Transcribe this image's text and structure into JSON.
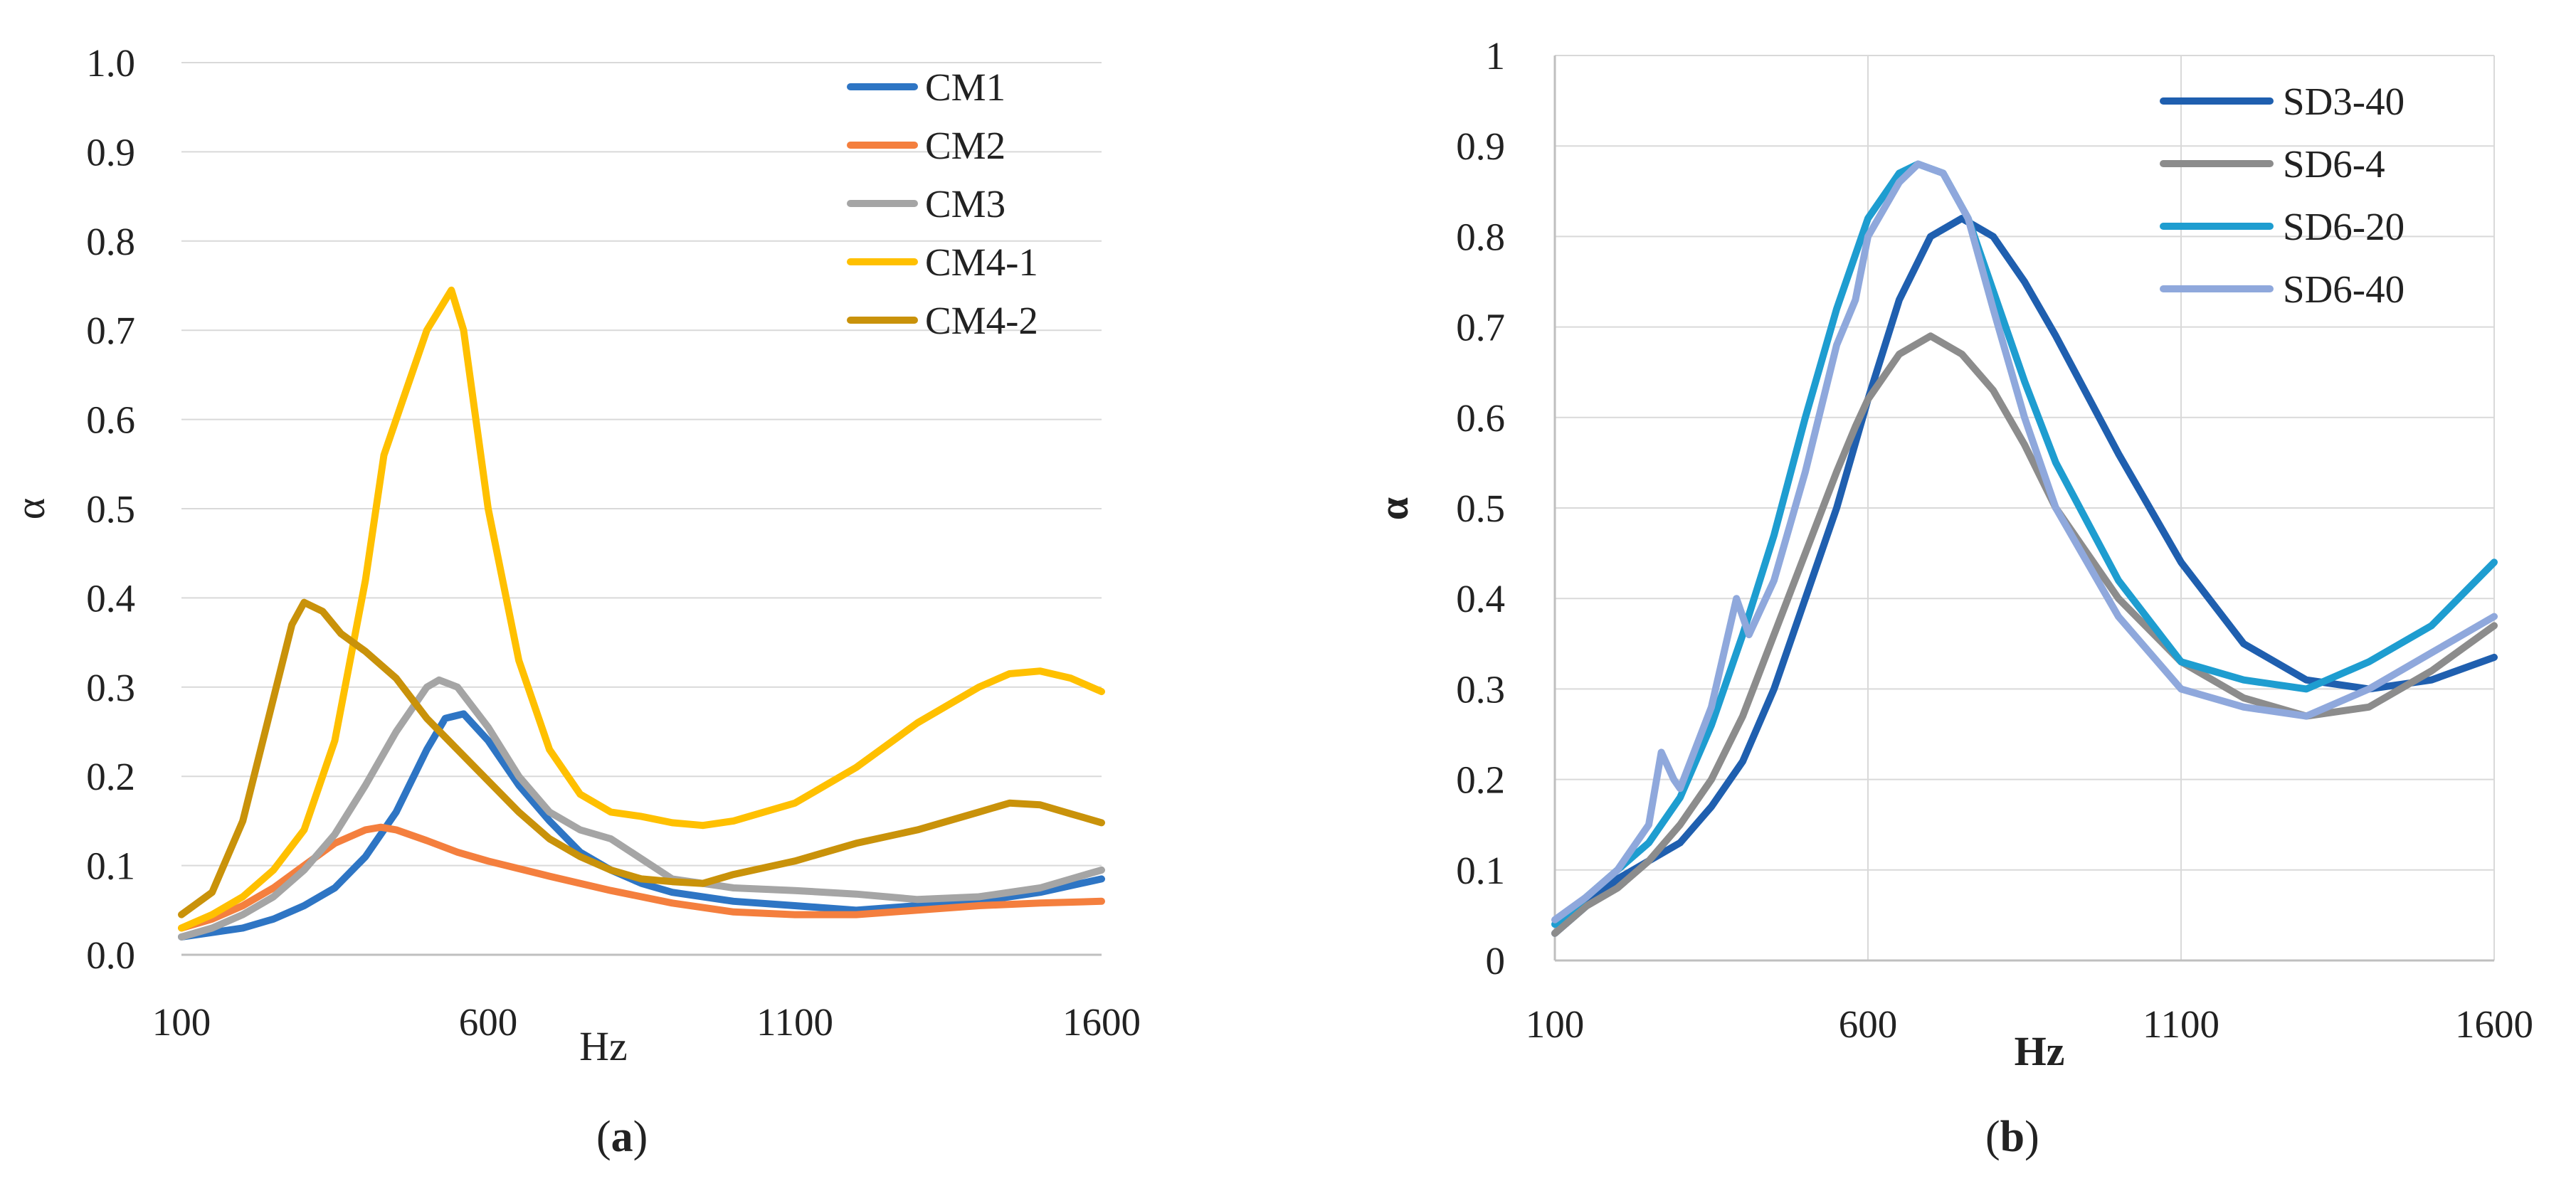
{
  "chart_data": [
    {
      "id": "a",
      "type": "line",
      "caption": "a",
      "xlabel": "Hz",
      "ylabel": "α",
      "xlim": [
        100,
        1600
      ],
      "ylim": [
        0,
        1
      ],
      "xticks": [
        100,
        600,
        1100,
        1600
      ],
      "xtick_labels": [
        "100",
        "600",
        "1100",
        "1600"
      ],
      "yticks": [
        0,
        0.1,
        0.2,
        0.3,
        0.4,
        0.5,
        0.6,
        0.7,
        0.8,
        0.9,
        1.0
      ],
      "ytick_labels": [
        "0.0",
        "0.1",
        "0.2",
        "0.3",
        "0.4",
        "0.5",
        "0.6",
        "0.7",
        "0.8",
        "0.9",
        "1.0"
      ],
      "grid": "horizontal",
      "legend_position": "top-right",
      "series": [
        {
          "name": "CM1",
          "color": "#2E75C4",
          "x": [
            100,
            150,
            200,
            250,
            300,
            350,
            400,
            450,
            500,
            530,
            560,
            600,
            650,
            700,
            750,
            800,
            850,
            900,
            1000,
            1100,
            1200,
            1300,
            1400,
            1500,
            1600
          ],
          "y": [
            0.02,
            0.025,
            0.03,
            0.04,
            0.055,
            0.075,
            0.11,
            0.16,
            0.23,
            0.265,
            0.27,
            0.24,
            0.19,
            0.15,
            0.115,
            0.095,
            0.08,
            0.07,
            0.06,
            0.055,
            0.05,
            0.055,
            0.06,
            0.07,
            0.085
          ]
        },
        {
          "name": "CM2",
          "color": "#F47F3E",
          "x": [
            100,
            150,
            200,
            250,
            300,
            350,
            400,
            425,
            450,
            500,
            550,
            600,
            700,
            800,
            900,
            1000,
            1100,
            1200,
            1300,
            1400,
            1500,
            1600
          ],
          "y": [
            0.03,
            0.04,
            0.055,
            0.075,
            0.1,
            0.125,
            0.14,
            0.143,
            0.14,
            0.128,
            0.115,
            0.105,
            0.088,
            0.072,
            0.058,
            0.048,
            0.045,
            0.045,
            0.05,
            0.055,
            0.058,
            0.06
          ]
        },
        {
          "name": "CM3",
          "color": "#A5A5A5",
          "x": [
            100,
            150,
            200,
            250,
            300,
            350,
            400,
            450,
            500,
            520,
            550,
            600,
            650,
            700,
            750,
            800,
            900,
            1000,
            1100,
            1200,
            1300,
            1400,
            1500,
            1600
          ],
          "y": [
            0.02,
            0.03,
            0.045,
            0.065,
            0.095,
            0.135,
            0.19,
            0.25,
            0.3,
            0.308,
            0.3,
            0.255,
            0.2,
            0.16,
            0.14,
            0.13,
            0.085,
            0.075,
            0.072,
            0.068,
            0.062,
            0.065,
            0.075,
            0.095
          ]
        },
        {
          "name": "CM4-1",
          "color": "#FFC000",
          "x": [
            100,
            150,
            200,
            250,
            300,
            350,
            400,
            430,
            460,
            500,
            540,
            560,
            600,
            650,
            700,
            750,
            800,
            850,
            900,
            950,
            1000,
            1100,
            1200,
            1300,
            1400,
            1450,
            1500,
            1550,
            1600
          ],
          "y": [
            0.03,
            0.045,
            0.065,
            0.095,
            0.14,
            0.24,
            0.42,
            0.56,
            0.62,
            0.7,
            0.745,
            0.7,
            0.5,
            0.33,
            0.23,
            0.18,
            0.16,
            0.155,
            0.148,
            0.145,
            0.15,
            0.17,
            0.21,
            0.26,
            0.3,
            0.315,
            0.318,
            0.31,
            0.295
          ]
        },
        {
          "name": "CM4-2",
          "color": "#C9920A",
          "x": [
            100,
            150,
            200,
            240,
            280,
            300,
            330,
            360,
            400,
            450,
            500,
            550,
            600,
            650,
            700,
            750,
            800,
            850,
            900,
            950,
            1000,
            1100,
            1200,
            1300,
            1400,
            1450,
            1500,
            1550,
            1600
          ],
          "y": [
            0.045,
            0.07,
            0.15,
            0.26,
            0.37,
            0.395,
            0.385,
            0.36,
            0.34,
            0.31,
            0.265,
            0.23,
            0.195,
            0.16,
            0.13,
            0.11,
            0.095,
            0.085,
            0.082,
            0.08,
            0.09,
            0.105,
            0.125,
            0.14,
            0.16,
            0.17,
            0.168,
            0.158,
            0.148
          ]
        }
      ]
    },
    {
      "id": "b",
      "type": "line",
      "caption": "b",
      "xlabel": "Hz",
      "ylabel": "α",
      "xlim": [
        100,
        1600
      ],
      "ylim": [
        0,
        1
      ],
      "xticks": [
        100,
        600,
        1100,
        1600
      ],
      "xtick_labels": [
        "100",
        "600",
        "1100",
        "1600"
      ],
      "yticks": [
        0,
        0.1,
        0.2,
        0.3,
        0.4,
        0.5,
        0.6,
        0.7,
        0.8,
        0.9,
        1
      ],
      "ytick_labels": [
        "0",
        "0.1",
        "0.2",
        "0.3",
        "0.4",
        "0.5",
        "0.6",
        "0.7",
        "0.8",
        "0.9",
        "1"
      ],
      "grid": "both",
      "legend_position": "top-right",
      "series": [
        {
          "name": "SD3-40",
          "color": "#1F5FAF",
          "x": [
            100,
            150,
            200,
            250,
            300,
            350,
            400,
            450,
            500,
            550,
            600,
            650,
            700,
            750,
            800,
            850,
            900,
            1000,
            1100,
            1200,
            1300,
            1400,
            1500,
            1600
          ],
          "y": [
            0.03,
            0.06,
            0.09,
            0.11,
            0.13,
            0.17,
            0.22,
            0.3,
            0.4,
            0.5,
            0.62,
            0.73,
            0.8,
            0.82,
            0.8,
            0.75,
            0.69,
            0.56,
            0.44,
            0.35,
            0.31,
            0.3,
            0.31,
            0.335
          ]
        },
        {
          "name": "SD6-4",
          "color": "#8C8C8C",
          "x": [
            100,
            150,
            200,
            250,
            300,
            350,
            400,
            450,
            500,
            550,
            580,
            600,
            650,
            700,
            750,
            800,
            850,
            900,
            1000,
            1100,
            1200,
            1300,
            1400,
            1500,
            1600
          ],
          "y": [
            0.03,
            0.06,
            0.08,
            0.11,
            0.15,
            0.2,
            0.27,
            0.36,
            0.45,
            0.54,
            0.59,
            0.62,
            0.67,
            0.69,
            0.67,
            0.63,
            0.57,
            0.5,
            0.4,
            0.33,
            0.29,
            0.27,
            0.28,
            0.32,
            0.37
          ]
        },
        {
          "name": "SD6-20",
          "color": "#1E9DD0",
          "x": [
            100,
            150,
            200,
            250,
            300,
            350,
            400,
            450,
            500,
            550,
            600,
            650,
            680,
            720,
            760,
            800,
            850,
            900,
            1000,
            1100,
            1200,
            1300,
            1400,
            1500,
            1600
          ],
          "y": [
            0.04,
            0.07,
            0.1,
            0.13,
            0.18,
            0.26,
            0.36,
            0.47,
            0.6,
            0.72,
            0.82,
            0.87,
            0.88,
            0.87,
            0.82,
            0.74,
            0.64,
            0.55,
            0.42,
            0.33,
            0.31,
            0.3,
            0.33,
            0.37,
            0.44
          ]
        },
        {
          "name": "SD6-40",
          "color": "#8FA8DC",
          "x": [
            100,
            150,
            200,
            250,
            270,
            290,
            300,
            350,
            390,
            410,
            450,
            500,
            550,
            580,
            600,
            650,
            680,
            720,
            760,
            800,
            850,
            900,
            1000,
            1100,
            1200,
            1300,
            1400,
            1500,
            1600
          ],
          "y": [
            0.045,
            0.07,
            0.1,
            0.15,
            0.23,
            0.2,
            0.19,
            0.28,
            0.4,
            0.36,
            0.42,
            0.54,
            0.68,
            0.73,
            0.8,
            0.86,
            0.88,
            0.87,
            0.82,
            0.72,
            0.6,
            0.5,
            0.38,
            0.3,
            0.28,
            0.27,
            0.3,
            0.34,
            0.38
          ]
        }
      ]
    }
  ]
}
